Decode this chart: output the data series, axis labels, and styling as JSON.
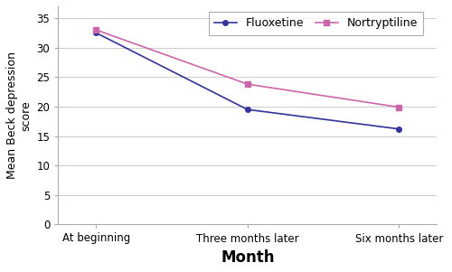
{
  "x_labels": [
    "At beginning",
    "Three months later",
    "Six months later"
  ],
  "fluoxetine_values": [
    32.5,
    19.5,
    16.2
  ],
  "nortryptiline_values": [
    33.0,
    23.8,
    19.9
  ],
  "fluoxetine_color": "#333399",
  "nortryptiline_color": "#cc66aa",
  "fluoxetine_label": "Fluoxetine",
  "nortryptiline_label": "Nortryptiline",
  "ylabel": "Mean Beck depression\nscore",
  "xlabel": "Month",
  "ylim": [
    0,
    37
  ],
  "yticks": [
    0,
    5,
    10,
    15,
    20,
    25,
    30,
    35
  ],
  "background_color": "#ffffff",
  "grid_color": "#cccccc",
  "xlabel_fontsize": 12,
  "ylabel_fontsize": 9,
  "tick_fontsize": 8.5,
  "legend_fontsize": 9
}
